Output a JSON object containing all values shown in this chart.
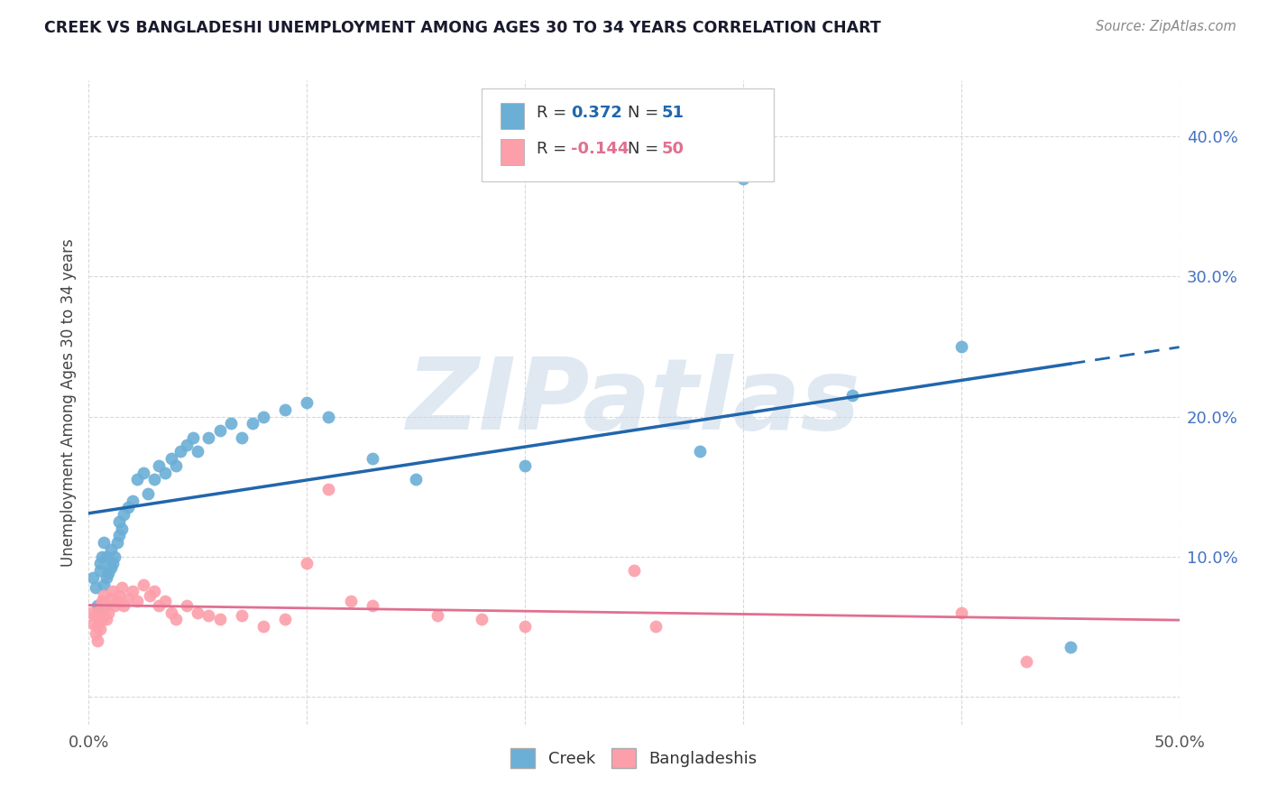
{
  "title": "CREEK VS BANGLADESHI UNEMPLOYMENT AMONG AGES 30 TO 34 YEARS CORRELATION CHART",
  "source": "Source: ZipAtlas.com",
  "ylabel": "Unemployment Among Ages 30 to 34 years",
  "xlim": [
    0.0,
    0.5
  ],
  "ylim": [
    -0.02,
    0.44
  ],
  "plot_ylim": [
    -0.02,
    0.44
  ],
  "xticks": [
    0.0,
    0.1,
    0.2,
    0.3,
    0.4,
    0.5
  ],
  "xticklabels": [
    "0.0%",
    "",
    "",
    "",
    "",
    "50.0%"
  ],
  "yticks_right": [
    0.0,
    0.1,
    0.2,
    0.3,
    0.4
  ],
  "yticklabels_right": [
    "",
    "10.0%",
    "20.0%",
    "30.0%",
    "40.0%"
  ],
  "creek_color": "#6baed6",
  "bangladeshi_color": "#fc9faa",
  "creek_line_color": "#2166ac",
  "bangladeshi_line_color": "#e07090",
  "creek_R": 0.372,
  "creek_N": 51,
  "bangladeshi_R": -0.144,
  "bangladeshi_N": 50,
  "creek_scatter_x": [
    0.002,
    0.003,
    0.004,
    0.005,
    0.005,
    0.006,
    0.007,
    0.007,
    0.008,
    0.008,
    0.009,
    0.01,
    0.01,
    0.011,
    0.012,
    0.013,
    0.014,
    0.014,
    0.015,
    0.016,
    0.018,
    0.02,
    0.022,
    0.025,
    0.027,
    0.03,
    0.032,
    0.035,
    0.038,
    0.04,
    0.042,
    0.045,
    0.048,
    0.05,
    0.055,
    0.06,
    0.065,
    0.07,
    0.075,
    0.08,
    0.09,
    0.1,
    0.11,
    0.13,
    0.15,
    0.2,
    0.28,
    0.3,
    0.35,
    0.4,
    0.45
  ],
  "creek_scatter_y": [
    0.085,
    0.078,
    0.065,
    0.09,
    0.095,
    0.1,
    0.08,
    0.11,
    0.085,
    0.1,
    0.088,
    0.092,
    0.105,
    0.095,
    0.1,
    0.11,
    0.115,
    0.125,
    0.12,
    0.13,
    0.135,
    0.14,
    0.155,
    0.16,
    0.145,
    0.155,
    0.165,
    0.16,
    0.17,
    0.165,
    0.175,
    0.18,
    0.185,
    0.175,
    0.185,
    0.19,
    0.195,
    0.185,
    0.195,
    0.2,
    0.205,
    0.21,
    0.2,
    0.17,
    0.155,
    0.165,
    0.175,
    0.37,
    0.215,
    0.25,
    0.035
  ],
  "bangladeshi_scatter_x": [
    0.001,
    0.002,
    0.003,
    0.003,
    0.004,
    0.004,
    0.005,
    0.005,
    0.006,
    0.006,
    0.007,
    0.007,
    0.008,
    0.008,
    0.009,
    0.01,
    0.011,
    0.012,
    0.013,
    0.014,
    0.015,
    0.016,
    0.018,
    0.02,
    0.022,
    0.025,
    0.028,
    0.03,
    0.032,
    0.035,
    0.038,
    0.04,
    0.045,
    0.05,
    0.055,
    0.06,
    0.07,
    0.08,
    0.09,
    0.1,
    0.11,
    0.12,
    0.13,
    0.16,
    0.18,
    0.2,
    0.25,
    0.26,
    0.4,
    0.43
  ],
  "bangladeshi_scatter_y": [
    0.06,
    0.052,
    0.045,
    0.058,
    0.05,
    0.04,
    0.062,
    0.048,
    0.055,
    0.068,
    0.072,
    0.058,
    0.065,
    0.055,
    0.06,
    0.07,
    0.075,
    0.065,
    0.068,
    0.072,
    0.078,
    0.065,
    0.07,
    0.075,
    0.068,
    0.08,
    0.072,
    0.075,
    0.065,
    0.068,
    0.06,
    0.055,
    0.065,
    0.06,
    0.058,
    0.055,
    0.058,
    0.05,
    0.055,
    0.095,
    0.148,
    0.068,
    0.065,
    0.058,
    0.055,
    0.05,
    0.09,
    0.05,
    0.06,
    0.025
  ],
  "background_color": "#ffffff",
  "watermark": "ZIPatlas",
  "watermark_color": "#c8d8e8",
  "grid_color": "#d8d8d8",
  "tick_color": "#555555"
}
